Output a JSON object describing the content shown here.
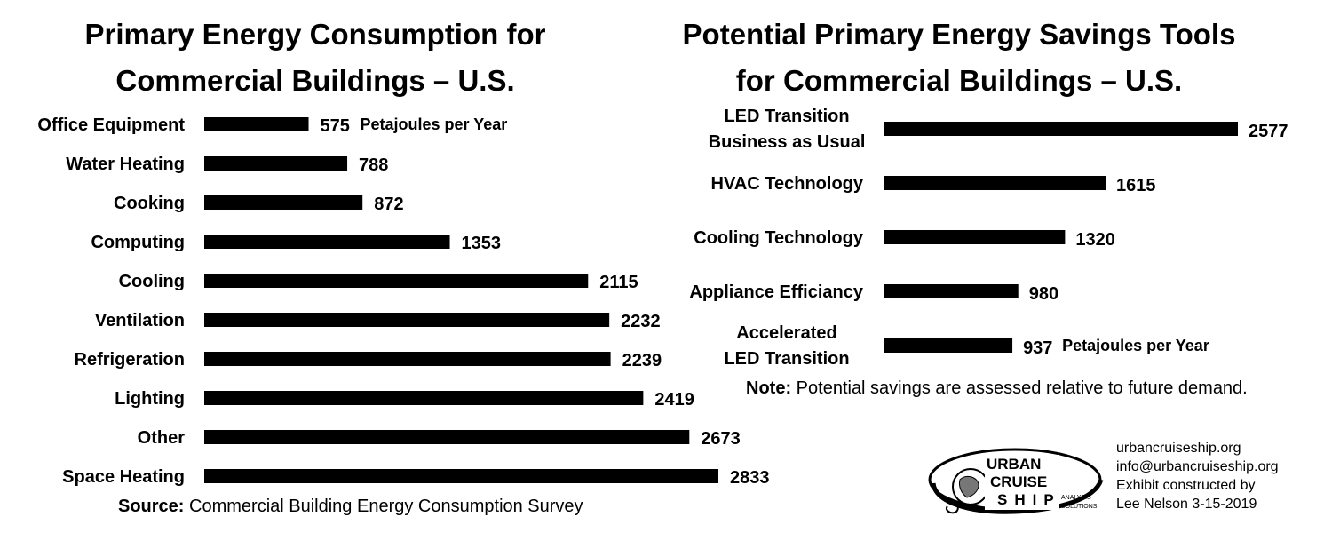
{
  "chart_data": [
    {
      "type": "bar",
      "orientation": "horizontal",
      "title": "Primary Energy Consumption for Commercial Buildings – U.S.",
      "title_lines": [
        "Primary Energy Consumption for",
        "Commercial Buildings – U.S."
      ],
      "unit_label": "Petajoules per Year",
      "categories": [
        "Office Equipment",
        "Water Heating",
        "Cooking",
        "Computing",
        "Cooling",
        "Ventilation",
        "Refrigeration",
        "Lighting",
        "Other",
        "Space Heating"
      ],
      "values": [
        575,
        788,
        872,
        1353,
        2115,
        2232,
        2239,
        2419,
        2673,
        2833
      ],
      "grid": false,
      "source_label": "Source:",
      "source_text": "Commercial Building Energy Consumption Survey"
    },
    {
      "type": "bar",
      "orientation": "horizontal",
      "title": "Potential Primary Energy Savings Tools for Commercial Buildings – U.S.",
      "title_lines": [
        "Potential Primary Energy Savings Tools",
        "for Commercial Buildings – U.S."
      ],
      "unit_label": "Petajoules per Year",
      "categories": [
        "LED Transition Business as Usual",
        "HVAC Technology",
        "Cooling Technology",
        "Appliance Efficiancy",
        "Accelerated LED Transition"
      ],
      "category_lines": [
        [
          "LED Transition",
          "Business as Usual"
        ],
        [
          "HVAC Technology"
        ],
        [
          "Cooling Technology"
        ],
        [
          "Appliance Efficiancy"
        ],
        [
          "Accelerated",
          "LED Transition"
        ]
      ],
      "values": [
        2577,
        1615,
        1320,
        980,
        937
      ],
      "grid": false,
      "note_label": "Note:",
      "note_text": "Potential savings are assessed relative to future demand."
    }
  ],
  "logo": {
    "line1": "URBAN",
    "line2": "CRUISE",
    "line3": "SHIP",
    "sub1": "ANALYSIS",
    "sub2": "SOLUTIONS"
  },
  "credits": [
    "urbancruiseship.org",
    "info@urbancruiseship.org",
    "Exhibit constructed by",
    "Lee Nelson 3-15-2019"
  ],
  "colors": {
    "bar": "#000000",
    "background": "#ffffff",
    "text": "#000000"
  }
}
